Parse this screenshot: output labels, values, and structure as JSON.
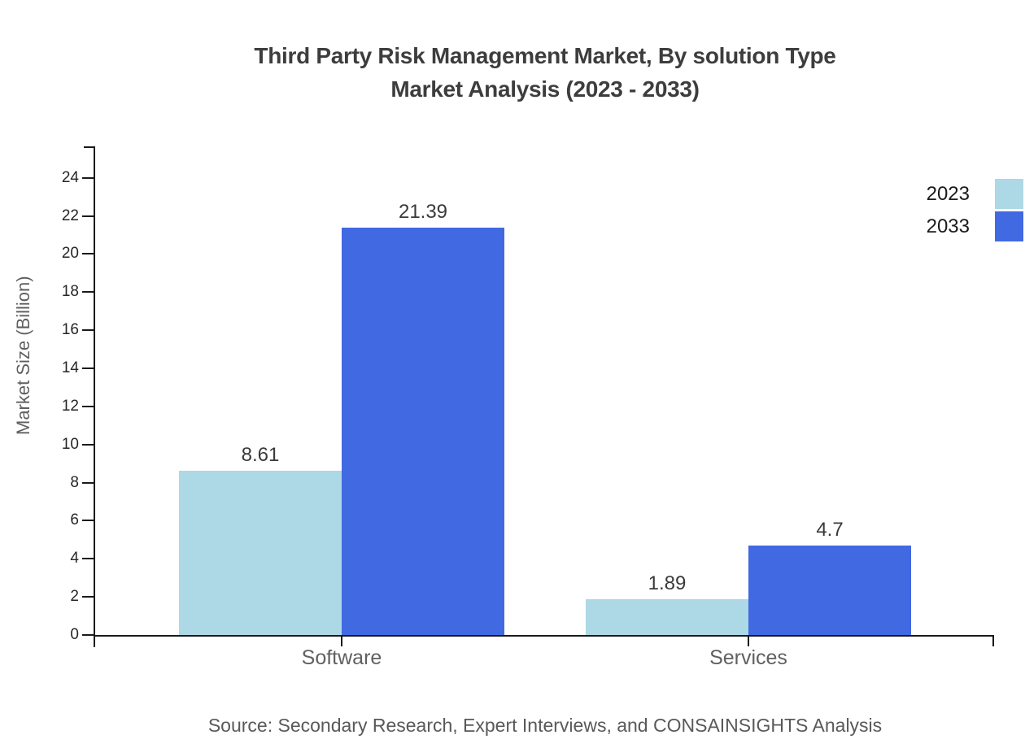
{
  "chart": {
    "title_line1": "Third Party Risk Management Market, By solution Type",
    "title_line2": "Market Analysis (2023 - 2033)",
    "ylabel": "Market Size (Billion)",
    "source": "Source: Secondary Research, Expert Interviews, and CONSAINSIGHTS Analysis"
  },
  "chart_data": {
    "type": "bar",
    "title": "Third Party Risk Management Market, By solution Type Market Analysis (2023 - 2033)",
    "categories": [
      "Software",
      "Services"
    ],
    "series": [
      {
        "name": "2023",
        "color": "#ADD8E6",
        "values": [
          8.61,
          1.89
        ],
        "labels": [
          "8.61",
          "1.89"
        ]
      },
      {
        "name": "2033",
        "color": "#4169E1",
        "values": [
          21.39,
          4.7
        ],
        "labels": [
          "21.39",
          "4.7"
        ]
      }
    ],
    "xlabel": "",
    "ylabel": "Market Size (Billion)",
    "ylim": [
      0,
      25.65
    ],
    "yticks": [
      0,
      2,
      4,
      6,
      8,
      10,
      12,
      14,
      16,
      18,
      20,
      22,
      24
    ],
    "grid": false,
    "legend_position": "top-right",
    "axis_color": "#1a1a1a"
  }
}
